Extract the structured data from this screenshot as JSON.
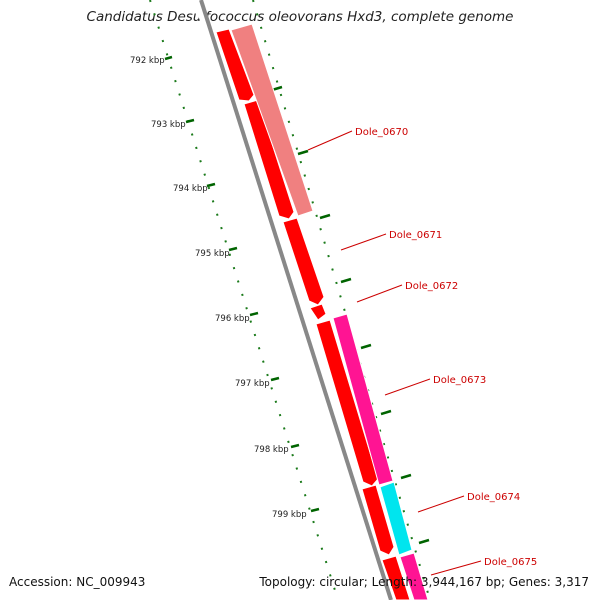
{
  "title": "Candidatus Desulfococcus oleovorans Hxd3, complete genome",
  "accession_text": "Accession: NC_009943",
  "summary_text": "Topology: circular; Length: 3,944,167 bp; Genes: 3,317",
  "tick_labels": [
    "792 kbp",
    "793 kbp",
    "794 kbp",
    "795 kbp",
    "796 kbp",
    "797 kbp",
    "798 kbp",
    "799 kbp"
  ],
  "gene_labels": [
    "Dole_0670",
    "Dole_0671",
    "Dole_0672",
    "Dole_0673",
    "Dole_0674",
    "Dole_0675"
  ],
  "colors": {
    "cds_forward": "#ff0000",
    "feature_salmon": "#f08080",
    "feature_pink": "#ff1493",
    "feature_cyan": "#00e5ee",
    "backbone": "#888888",
    "ticks": "#006400",
    "label": "#cc0000"
  }
}
